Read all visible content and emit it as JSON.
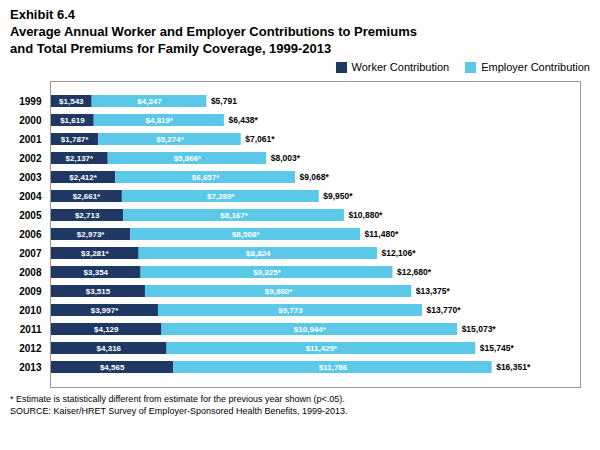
{
  "chart_data": {
    "type": "bar",
    "orientation": "horizontal",
    "stacked": true,
    "title": [
      "Exhibit 6.4",
      "Average Annual Worker and Employer Contributions to Premiums",
      "and Total Premiums for Family Coverage, 1999-2013"
    ],
    "categories": [
      "1999",
      "2000",
      "2001",
      "2002",
      "2003",
      "2004",
      "2005",
      "2006",
      "2007",
      "2008",
      "2009",
      "2010",
      "2011",
      "2012",
      "2013"
    ],
    "series": [
      {
        "name": "Worker Contribution",
        "color": "#1f3864",
        "values": [
          1543,
          1619,
          1787,
          2137,
          2412,
          2661,
          2713,
          2973,
          3281,
          3354,
          3515,
          3997,
          4129,
          4316,
          4565
        ],
        "value_labels": [
          "$1,543",
          "$1,619",
          "$1,787*",
          "$2,137*",
          "$2,412*",
          "$2,661*",
          "$2,713",
          "$2,973*",
          "$3,281*",
          "$3,354",
          "$3,515",
          "$3,997*",
          "$4,129",
          "$4,316",
          "$4,565"
        ]
      },
      {
        "name": "Employer Contribution",
        "color": "#5bc8e8",
        "values": [
          4247,
          4819,
          5274,
          5866,
          6657,
          7289,
          8167,
          8508,
          8824,
          9325,
          9860,
          9773,
          10944,
          11429,
          11786
        ],
        "value_labels": [
          "$4,247",
          "$4,819*",
          "$5,274*",
          "$5,866*",
          "$6,657*",
          "$7,289*",
          "$8,167*",
          "$8,508*",
          "$8,824",
          "$9,325*",
          "$9,860*",
          "$9,773",
          "$10,944*",
          "$11,429*",
          "$11,786"
        ]
      }
    ],
    "total_labels": [
      "$5,791",
      "$6,438*",
      "$7,061*",
      "$8,003*",
      "$9,068*",
      "$9,950*",
      "$10,880*",
      "$11,480*",
      "$12,106*",
      "$12,680*",
      "$13,375*",
      "$13,770*",
      "$15,073*",
      "$15,745*",
      "$16,351*"
    ],
    "xlim": [
      0,
      19621.2
    ],
    "tick_labels": "y",
    "data_labels": true,
    "legend": "upper right",
    "grid": false,
    "annotations": [
      "* Estimate is statistically different from estimate for the previous year shown (p<.05).",
      "SOURCE:  Kaiser/HRET Survey of Employer-Sponsored Health Benefits, 1999-2013."
    ]
  }
}
